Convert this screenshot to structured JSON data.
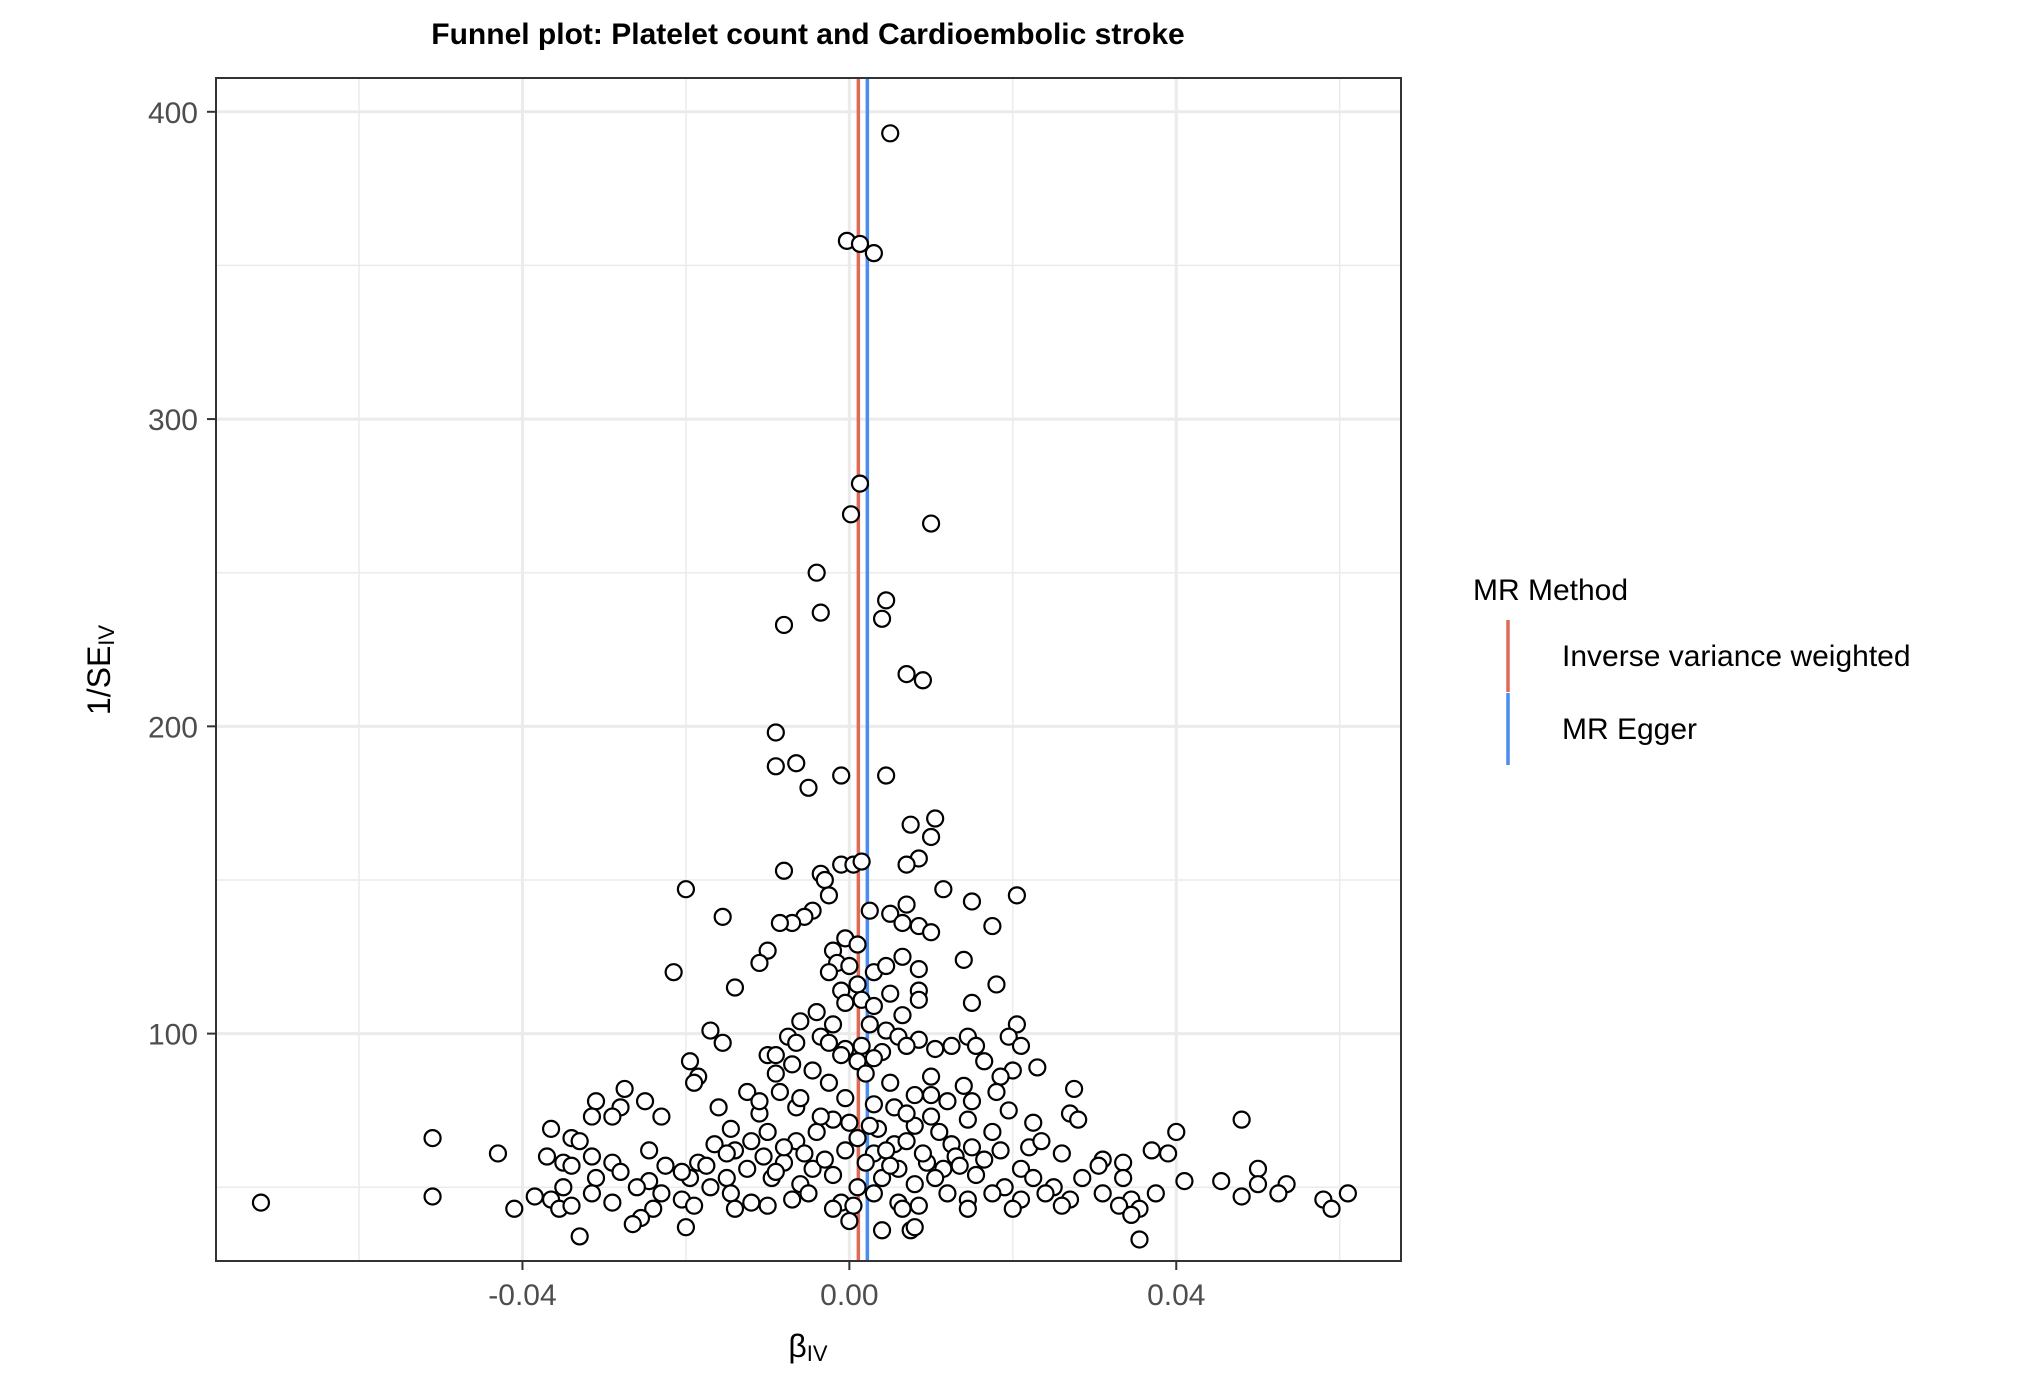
{
  "chart_data": {
    "type": "scatter",
    "title": "Funnel plot: Platelet count and Cardioembolic stroke",
    "xlabel": {
      "main": "β",
      "sub": "IV"
    },
    "ylabel": {
      "main": "1/SE",
      "sub": "IV"
    },
    "xlim": [
      -0.0775,
      0.0675
    ],
    "ylim": [
      26,
      411
    ],
    "x_ticks": [
      {
        "value": -0.04,
        "label": "-0.04"
      },
      {
        "value": 0.0,
        "label": "0.00"
      },
      {
        "value": 0.04,
        "label": "0.04"
      }
    ],
    "y_ticks": [
      {
        "value": 100,
        "label": "100"
      },
      {
        "value": 200,
        "label": "200"
      },
      {
        "value": 300,
        "label": "300"
      },
      {
        "value": 400,
        "label": "400"
      }
    ],
    "x_minor_gridlines": [
      -0.06,
      -0.02,
      0.02,
      0.06
    ],
    "y_minor_gridlines": [
      50,
      150,
      250,
      350
    ],
    "grid": true,
    "legend": {
      "title": "MR Method",
      "position": "right",
      "entries": [
        {
          "label": "Inverse variance weighted",
          "color": "#E06A58"
        },
        {
          "label": "MR Egger",
          "color": "#4A8CF0"
        }
      ]
    },
    "lines": [
      {
        "method": "Inverse variance weighted",
        "x": 0.0011,
        "color": "#E06A58"
      },
      {
        "method": "MR Egger",
        "x": 0.0022,
        "color": "#4A8CF0"
      }
    ],
    "points": [
      {
        "x": 0.005,
        "y": 393
      },
      {
        "x": -0.0003,
        "y": 358
      },
      {
        "x": 0.0013,
        "y": 357
      },
      {
        "x": 0.003,
        "y": 354
      },
      {
        "x": 0.0013,
        "y": 279
      },
      {
        "x": 0.0002,
        "y": 269
      },
      {
        "x": 0.01,
        "y": 266
      },
      {
        "x": -0.004,
        "y": 250
      },
      {
        "x": -0.0035,
        "y": 237
      },
      {
        "x": 0.0045,
        "y": 241
      },
      {
        "x": -0.008,
        "y": 233
      },
      {
        "x": 0.004,
        "y": 235
      },
      {
        "x": 0.007,
        "y": 217
      },
      {
        "x": 0.009,
        "y": 215
      },
      {
        "x": -0.009,
        "y": 198
      },
      {
        "x": -0.009,
        "y": 187
      },
      {
        "x": -0.0065,
        "y": 188
      },
      {
        "x": -0.001,
        "y": 184
      },
      {
        "x": 0.0045,
        "y": 184
      },
      {
        "x": -0.005,
        "y": 180
      },
      {
        "x": 0.0105,
        "y": 170
      },
      {
        "x": 0.0075,
        "y": 168
      },
      {
        "x": 0.01,
        "y": 164
      },
      {
        "x": 0.0085,
        "y": 157
      },
      {
        "x": 0.007,
        "y": 155
      },
      {
        "x": -0.008,
        "y": 153
      },
      {
        "x": -0.001,
        "y": 155
      },
      {
        "x": 0.0005,
        "y": 155
      },
      {
        "x": 0.0015,
        "y": 156
      },
      {
        "x": -0.0035,
        "y": 152
      },
      {
        "x": -0.003,
        "y": 150
      },
      {
        "x": -0.02,
        "y": 147
      },
      {
        "x": 0.0115,
        "y": 147
      },
      {
        "x": 0.0205,
        "y": 145
      },
      {
        "x": -0.0025,
        "y": 145
      },
      {
        "x": 0.007,
        "y": 142
      },
      {
        "x": 0.015,
        "y": 143
      },
      {
        "x": -0.0155,
        "y": 138
      },
      {
        "x": -0.0045,
        "y": 140
      },
      {
        "x": -0.0055,
        "y": 138
      },
      {
        "x": -0.007,
        "y": 136
      },
      {
        "x": -0.0085,
        "y": 136
      },
      {
        "x": 0.0025,
        "y": 140
      },
      {
        "x": 0.005,
        "y": 139
      },
      {
        "x": 0.0065,
        "y": 136
      },
      {
        "x": 0.0085,
        "y": 135
      },
      {
        "x": 0.01,
        "y": 133
      },
      {
        "x": 0.0175,
        "y": 135
      },
      {
        "x": -0.0005,
        "y": 131
      },
      {
        "x": 0.001,
        "y": 129
      },
      {
        "x": -0.002,
        "y": 127
      },
      {
        "x": -0.01,
        "y": 127
      },
      {
        "x": -0.011,
        "y": 123
      },
      {
        "x": 0.0065,
        "y": 125
      },
      {
        "x": 0.014,
        "y": 124
      },
      {
        "x": -0.0015,
        "y": 123
      },
      {
        "x": 0.0,
        "y": 122
      },
      {
        "x": 0.003,
        "y": 120
      },
      {
        "x": 0.0045,
        "y": 122
      },
      {
        "x": 0.0085,
        "y": 121
      },
      {
        "x": -0.0025,
        "y": 120
      },
      {
        "x": -0.0215,
        "y": 120
      },
      {
        "x": 0.018,
        "y": 116
      },
      {
        "x": -0.014,
        "y": 115
      },
      {
        "x": -0.001,
        "y": 114
      },
      {
        "x": 0.001,
        "y": 116
      },
      {
        "x": 0.005,
        "y": 113
      },
      {
        "x": 0.0085,
        "y": 114
      },
      {
        "x": -0.0005,
        "y": 110
      },
      {
        "x": 0.0015,
        "y": 111
      },
      {
        "x": 0.003,
        "y": 109
      },
      {
        "x": 0.0085,
        "y": 111
      },
      {
        "x": 0.015,
        "y": 110
      },
      {
        "x": -0.004,
        "y": 107
      },
      {
        "x": -0.006,
        "y": 104
      },
      {
        "x": 0.0065,
        "y": 106
      },
      {
        "x": -0.002,
        "y": 103
      },
      {
        "x": 0.0025,
        "y": 103
      },
      {
        "x": 0.0205,
        "y": 103
      },
      {
        "x": -0.017,
        "y": 101
      },
      {
        "x": 0.0045,
        "y": 101
      },
      {
        "x": -0.0075,
        "y": 99
      },
      {
        "x": -0.0035,
        "y": 99
      },
      {
        "x": 0.006,
        "y": 99
      },
      {
        "x": 0.0085,
        "y": 98
      },
      {
        "x": 0.0145,
        "y": 99
      },
      {
        "x": 0.0195,
        "y": 99
      },
      {
        "x": -0.0155,
        "y": 97
      },
      {
        "x": -0.0065,
        "y": 97
      },
      {
        "x": -0.0025,
        "y": 97
      },
      {
        "x": 0.0015,
        "y": 96
      },
      {
        "x": 0.007,
        "y": 96
      },
      {
        "x": 0.0105,
        "y": 95
      },
      {
        "x": 0.0125,
        "y": 96
      },
      {
        "x": 0.0155,
        "y": 96
      },
      {
        "x": 0.021,
        "y": 96
      },
      {
        "x": -0.0005,
        "y": 95
      },
      {
        "x": 0.004,
        "y": 94
      },
      {
        "x": -0.01,
        "y": 93
      },
      {
        "x": -0.009,
        "y": 93
      },
      {
        "x": -0.001,
        "y": 93
      },
      {
        "x": 0.003,
        "y": 92
      },
      {
        "x": -0.0195,
        "y": 91
      },
      {
        "x": 0.0165,
        "y": 91
      },
      {
        "x": -0.007,
        "y": 90
      },
      {
        "x": 0.001,
        "y": 91
      },
      {
        "x": -0.0045,
        "y": 88
      },
      {
        "x": 0.02,
        "y": 88
      },
      {
        "x": 0.023,
        "y": 89
      },
      {
        "x": -0.0185,
        "y": 86
      },
      {
        "x": -0.009,
        "y": 87
      },
      {
        "x": 0.002,
        "y": 87
      },
      {
        "x": 0.01,
        "y": 86
      },
      {
        "x": 0.0185,
        "y": 86
      },
      {
        "x": -0.019,
        "y": 84
      },
      {
        "x": -0.0025,
        "y": 84
      },
      {
        "x": 0.005,
        "y": 84
      },
      {
        "x": 0.014,
        "y": 83
      },
      {
        "x": 0.0275,
        "y": 82
      },
      {
        "x": -0.0275,
        "y": 82
      },
      {
        "x": -0.0125,
        "y": 81
      },
      {
        "x": -0.0085,
        "y": 81
      },
      {
        "x": 0.008,
        "y": 80
      },
      {
        "x": 0.018,
        "y": 81
      },
      {
        "x": -0.031,
        "y": 78
      },
      {
        "x": -0.025,
        "y": 78
      },
      {
        "x": -0.0005,
        "y": 79
      },
      {
        "x": 0.012,
        "y": 78
      },
      {
        "x": 0.015,
        "y": 78
      },
      {
        "x": -0.028,
        "y": 76
      },
      {
        "x": -0.016,
        "y": 76
      },
      {
        "x": -0.0065,
        "y": 76
      },
      {
        "x": 0.0055,
        "y": 76
      },
      {
        "x": 0.0195,
        "y": 75
      },
      {
        "x": 0.027,
        "y": 74
      },
      {
        "x": -0.0315,
        "y": 73
      },
      {
        "x": -0.029,
        "y": 73
      },
      {
        "x": -0.023,
        "y": 73
      },
      {
        "x": -0.011,
        "y": 74
      },
      {
        "x": -0.002,
        "y": 72
      },
      {
        "x": 0.0,
        "y": 71
      },
      {
        "x": 0.01,
        "y": 73
      },
      {
        "x": 0.0145,
        "y": 72
      },
      {
        "x": 0.048,
        "y": 72
      },
      {
        "x": 0.028,
        "y": 72
      },
      {
        "x": 0.0225,
        "y": 71
      },
      {
        "x": -0.0365,
        "y": 69
      },
      {
        "x": -0.0145,
        "y": 69
      },
      {
        "x": -0.01,
        "y": 68
      },
      {
        "x": -0.004,
        "y": 68
      },
      {
        "x": 0.0035,
        "y": 69
      },
      {
        "x": 0.008,
        "y": 70
      },
      {
        "x": 0.0175,
        "y": 68
      },
      {
        "x": 0.04,
        "y": 68
      },
      {
        "x": -0.051,
        "y": 66
      },
      {
        "x": -0.034,
        "y": 66
      },
      {
        "x": -0.033,
        "y": 65
      },
      {
        "x": -0.0165,
        "y": 64
      },
      {
        "x": -0.0065,
        "y": 65
      },
      {
        "x": 0.0055,
        "y": 64
      },
      {
        "x": 0.0125,
        "y": 64
      },
      {
        "x": 0.022,
        "y": 63
      },
      {
        "x": 0.0235,
        "y": 65
      },
      {
        "x": -0.0245,
        "y": 62
      },
      {
        "x": -0.014,
        "y": 62
      },
      {
        "x": -0.0005,
        "y": 62
      },
      {
        "x": 0.015,
        "y": 63
      },
      {
        "x": 0.037,
        "y": 62
      },
      {
        "x": 0.039,
        "y": 61
      },
      {
        "x": -0.043,
        "y": 61
      },
      {
        "x": -0.037,
        "y": 60
      },
      {
        "x": -0.0315,
        "y": 60
      },
      {
        "x": -0.0105,
        "y": 60
      },
      {
        "x": 0.003,
        "y": 61
      },
      {
        "x": 0.026,
        "y": 61
      },
      {
        "x": 0.031,
        "y": 59
      },
      {
        "x": -0.035,
        "y": 58
      },
      {
        "x": -0.029,
        "y": 58
      },
      {
        "x": -0.0185,
        "y": 58
      },
      {
        "x": -0.008,
        "y": 58
      },
      {
        "x": 0.002,
        "y": 58
      },
      {
        "x": 0.0095,
        "y": 58
      },
      {
        "x": 0.0165,
        "y": 59
      },
      {
        "x": 0.0335,
        "y": 58
      },
      {
        "x": 0.05,
        "y": 56
      },
      {
        "x": -0.034,
        "y": 57
      },
      {
        "x": -0.028,
        "y": 55
      },
      {
        "x": -0.0225,
        "y": 57
      },
      {
        "x": -0.0125,
        "y": 56
      },
      {
        "x": -0.0045,
        "y": 56
      },
      {
        "x": 0.006,
        "y": 56
      },
      {
        "x": 0.0115,
        "y": 56
      },
      {
        "x": 0.021,
        "y": 56
      },
      {
        "x": 0.0305,
        "y": 57
      },
      {
        "x": -0.031,
        "y": 53
      },
      {
        "x": -0.0245,
        "y": 52
      },
      {
        "x": -0.0195,
        "y": 53
      },
      {
        "x": -0.015,
        "y": 53
      },
      {
        "x": -0.0095,
        "y": 53
      },
      {
        "x": -0.002,
        "y": 54
      },
      {
        "x": 0.004,
        "y": 53
      },
      {
        "x": 0.0105,
        "y": 53
      },
      {
        "x": 0.0155,
        "y": 54
      },
      {
        "x": 0.0225,
        "y": 53
      },
      {
        "x": 0.0285,
        "y": 53
      },
      {
        "x": 0.0335,
        "y": 53
      },
      {
        "x": 0.041,
        "y": 52
      },
      {
        "x": 0.0455,
        "y": 52
      },
      {
        "x": 0.05,
        "y": 51
      },
      {
        "x": 0.0535,
        "y": 51
      },
      {
        "x": -0.035,
        "y": 50
      },
      {
        "x": -0.026,
        "y": 50
      },
      {
        "x": -0.017,
        "y": 50
      },
      {
        "x": -0.006,
        "y": 51
      },
      {
        "x": 0.001,
        "y": 50
      },
      {
        "x": 0.008,
        "y": 51
      },
      {
        "x": 0.019,
        "y": 50
      },
      {
        "x": 0.025,
        "y": 50
      },
      {
        "x": -0.0385,
        "y": 47
      },
      {
        "x": -0.0315,
        "y": 48
      },
      {
        "x": -0.023,
        "y": 48
      },
      {
        "x": -0.0145,
        "y": 48
      },
      {
        "x": -0.005,
        "y": 48
      },
      {
        "x": 0.003,
        "y": 48
      },
      {
        "x": 0.012,
        "y": 48
      },
      {
        "x": 0.0175,
        "y": 48
      },
      {
        "x": 0.024,
        "y": 48
      },
      {
        "x": 0.031,
        "y": 48
      },
      {
        "x": 0.0375,
        "y": 48
      },
      {
        "x": 0.048,
        "y": 47
      },
      {
        "x": 0.0525,
        "y": 48
      },
      {
        "x": 0.061,
        "y": 48
      },
      {
        "x": -0.051,
        "y": 47
      },
      {
        "x": -0.0365,
        "y": 46
      },
      {
        "x": -0.029,
        "y": 45
      },
      {
        "x": -0.0205,
        "y": 46
      },
      {
        "x": -0.012,
        "y": 45
      },
      {
        "x": -0.007,
        "y": 46
      },
      {
        "x": -0.001,
        "y": 45
      },
      {
        "x": 0.006,
        "y": 45
      },
      {
        "x": 0.0145,
        "y": 46
      },
      {
        "x": 0.021,
        "y": 46
      },
      {
        "x": 0.027,
        "y": 46
      },
      {
        "x": 0.0345,
        "y": 46
      },
      {
        "x": 0.058,
        "y": 46
      },
      {
        "x": -0.072,
        "y": 45
      },
      {
        "x": -0.041,
        "y": 43
      },
      {
        "x": -0.0355,
        "y": 43
      },
      {
        "x": -0.034,
        "y": 44
      },
      {
        "x": -0.024,
        "y": 43
      },
      {
        "x": -0.019,
        "y": 44
      },
      {
        "x": -0.014,
        "y": 43
      },
      {
        "x": -0.01,
        "y": 44
      },
      {
        "x": -0.002,
        "y": 43
      },
      {
        "x": 0.0005,
        "y": 44
      },
      {
        "x": 0.0065,
        "y": 43
      },
      {
        "x": 0.0085,
        "y": 44
      },
      {
        "x": 0.0145,
        "y": 43
      },
      {
        "x": 0.02,
        "y": 43
      },
      {
        "x": 0.026,
        "y": 44
      },
      {
        "x": 0.033,
        "y": 44
      },
      {
        "x": 0.0355,
        "y": 43
      },
      {
        "x": 0.059,
        "y": 43
      },
      {
        "x": -0.0255,
        "y": 40
      },
      {
        "x": 0.0,
        "y": 39
      },
      {
        "x": 0.0345,
        "y": 41
      },
      {
        "x": -0.0265,
        "y": 38
      },
      {
        "x": -0.02,
        "y": 37
      },
      {
        "x": 0.004,
        "y": 36
      },
      {
        "x": 0.0075,
        "y": 36
      },
      {
        "x": 0.008,
        "y": 37
      },
      {
        "x": -0.033,
        "y": 34
      },
      {
        "x": 0.0355,
        "y": 33
      },
      {
        "x": 0.001,
        "y": 66
      },
      {
        "x": 0.0025,
        "y": 70
      },
      {
        "x": -0.0035,
        "y": 73
      },
      {
        "x": 0.007,
        "y": 65
      },
      {
        "x": -0.008,
        "y": 63
      },
      {
        "x": 0.011,
        "y": 68
      },
      {
        "x": -0.012,
        "y": 65
      },
      {
        "x": 0.013,
        "y": 60
      },
      {
        "x": -0.003,
        "y": 59
      },
      {
        "x": 0.0045,
        "y": 62
      },
      {
        "x": -0.0055,
        "y": 61
      },
      {
        "x": 0.009,
        "y": 61
      },
      {
        "x": -0.015,
        "y": 61
      },
      {
        "x": 0.0185,
        "y": 62
      },
      {
        "x": -0.0205,
        "y": 55
      },
      {
        "x": 0.005,
        "y": 57
      },
      {
        "x": -0.009,
        "y": 55
      },
      {
        "x": 0.0135,
        "y": 57
      },
      {
        "x": -0.0175,
        "y": 57
      },
      {
        "x": 0.01,
        "y": 80
      },
      {
        "x": -0.006,
        "y": 79
      },
      {
        "x": 0.003,
        "y": 77
      },
      {
        "x": -0.011,
        "y": 78
      },
      {
        "x": 0.007,
        "y": 74
      }
    ]
  }
}
